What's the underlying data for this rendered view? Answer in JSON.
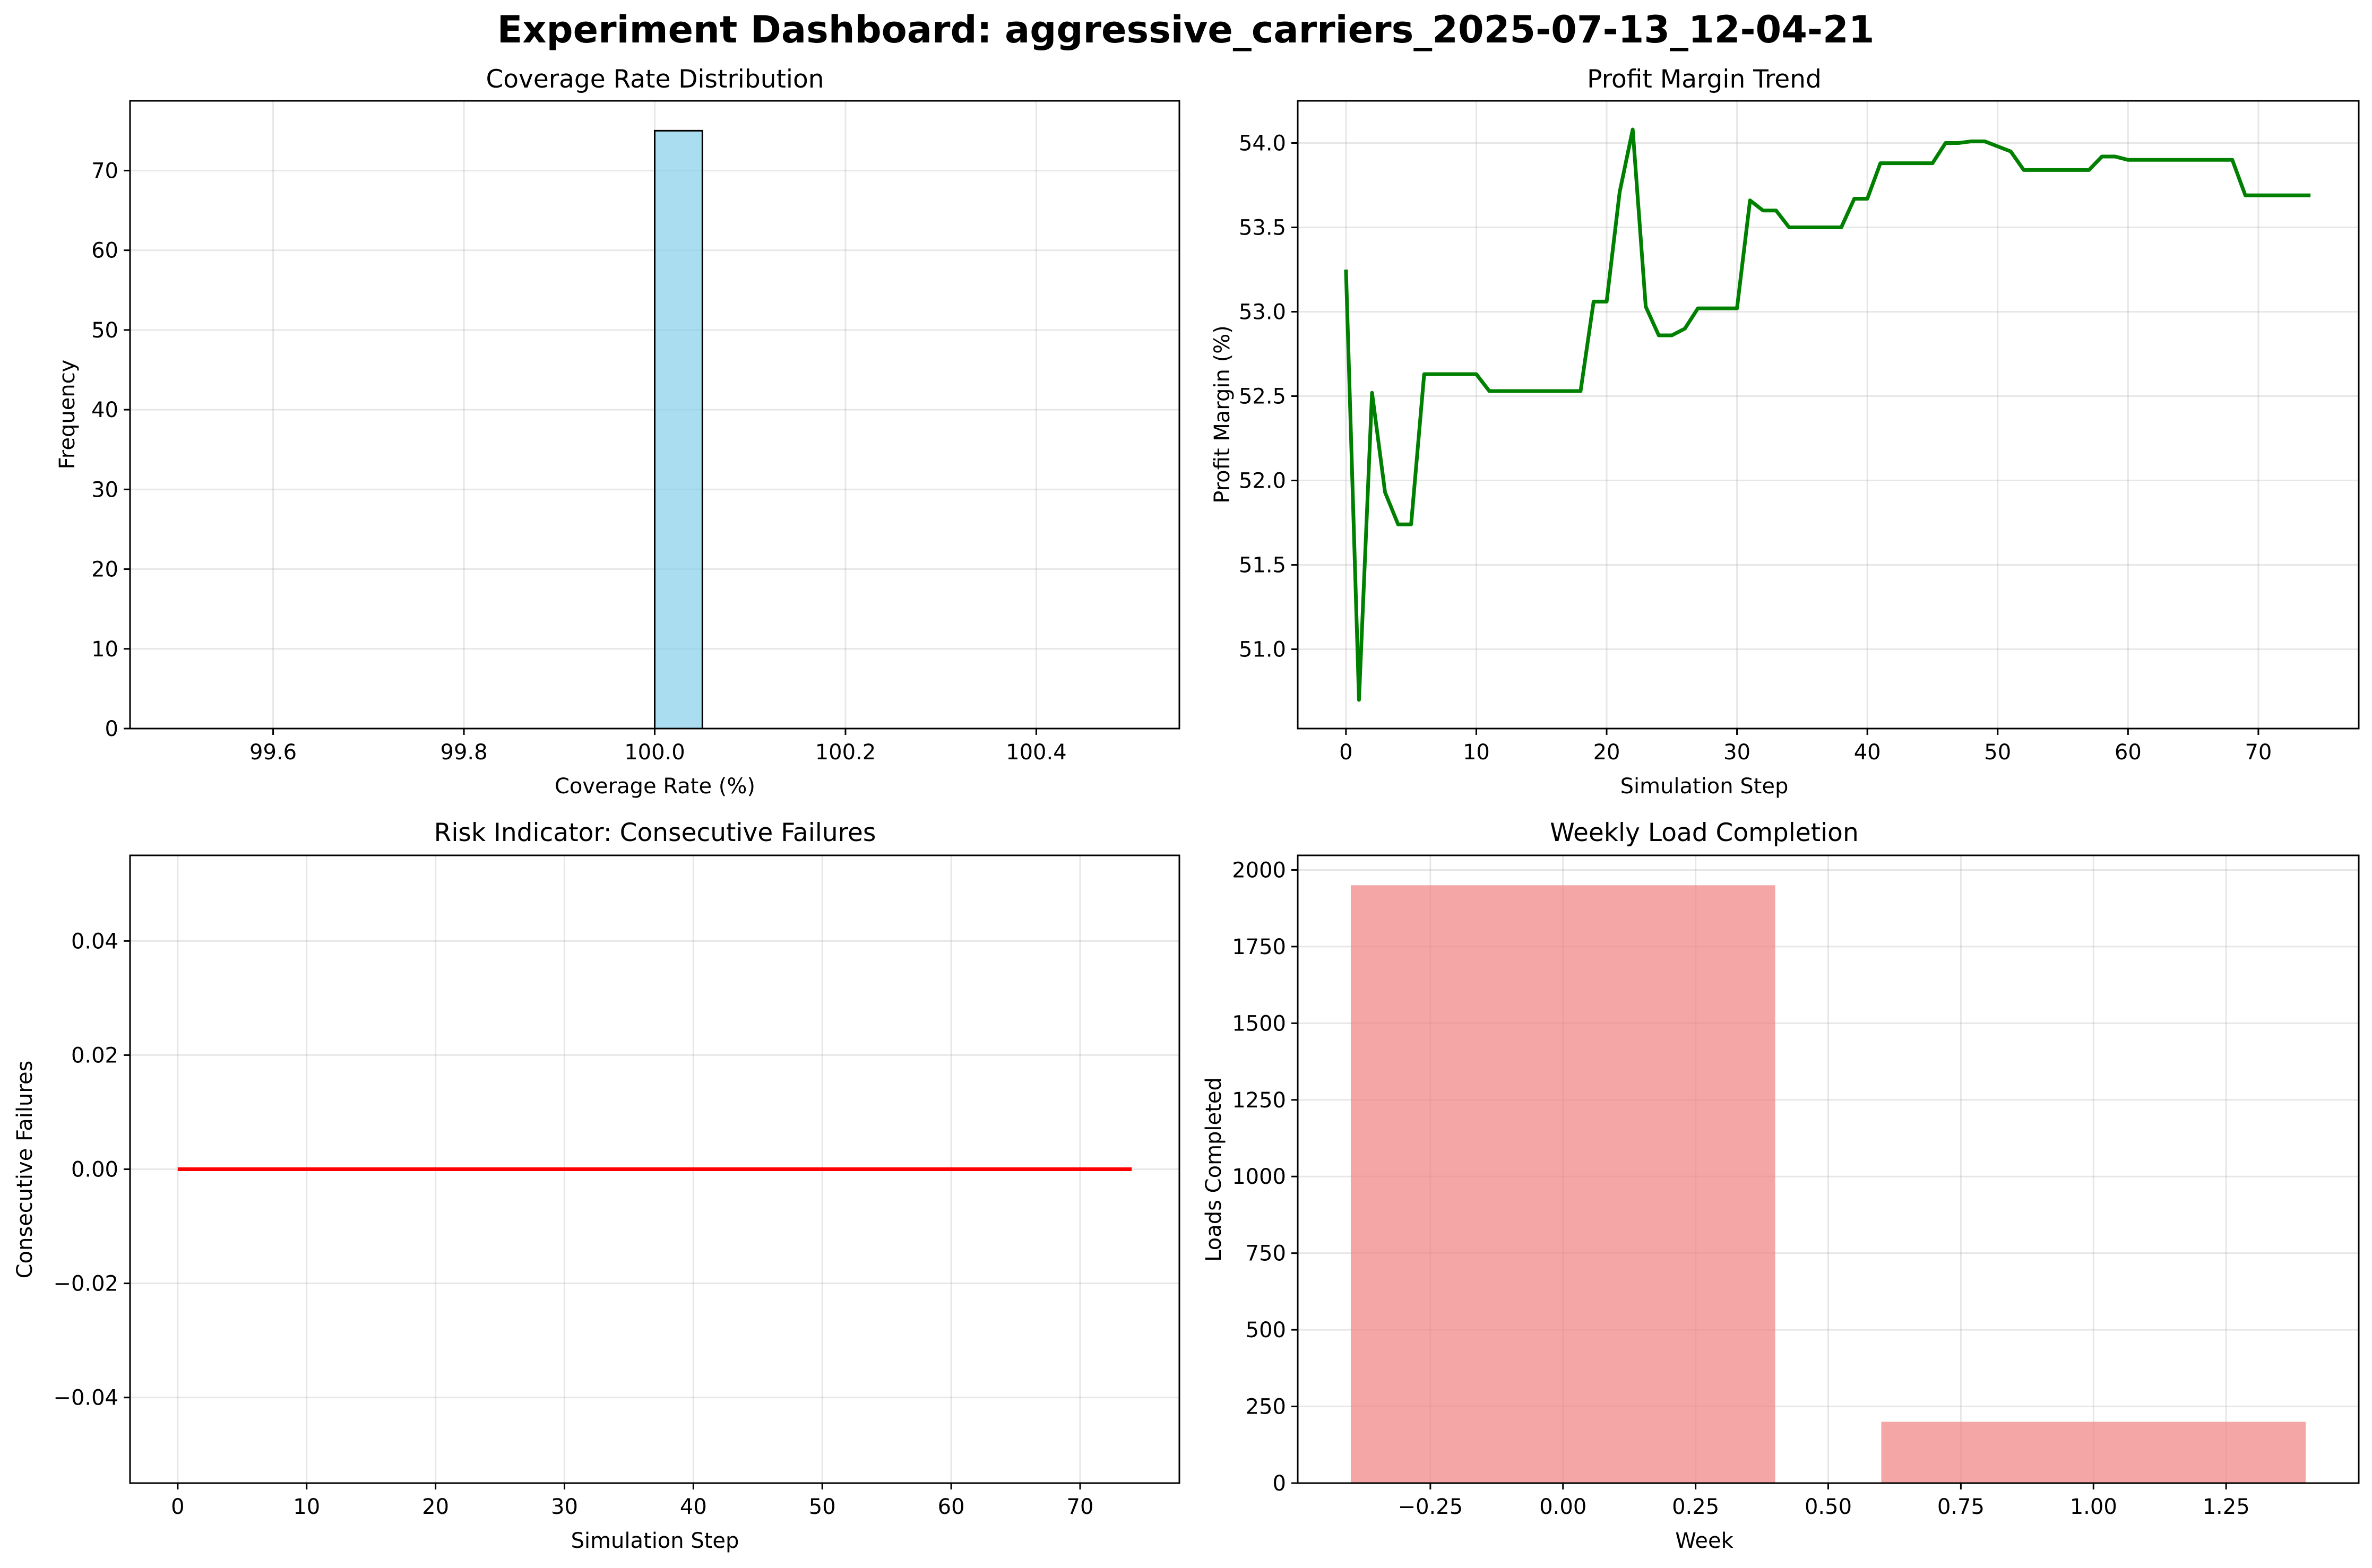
{
  "suptitle": "Experiment Dashboard: aggressive_carriers_2025-07-13_12-04-21",
  "chart_data": [
    {
      "type": "bar",
      "subtype": "histogram",
      "title": "Coverage Rate Distribution",
      "xlabel": "Coverage Rate (%)",
      "ylabel": "Frequency",
      "xlim": [
        99.45,
        100.55
      ],
      "ylim": [
        0,
        78.75
      ],
      "xticks": [
        99.6,
        99.8,
        100.0,
        100.2,
        100.4
      ],
      "xtick_labels": [
        "99.6",
        "99.8",
        "100.0",
        "100.2",
        "100.4"
      ],
      "yticks": [
        0,
        10,
        20,
        30,
        40,
        50,
        60,
        70
      ],
      "ytick_labels": [
        "0",
        "10",
        "20",
        "30",
        "40",
        "50",
        "60",
        "70"
      ],
      "bin_range": [
        99.5,
        100.5
      ],
      "bins": 20,
      "bin_edges_nonzero": [
        [
          100.0,
          100.05
        ]
      ],
      "values": [
        75
      ],
      "bar_color": "#87ceeb",
      "edge_color": "#000000",
      "grid": true
    },
    {
      "type": "line",
      "title": "Profit Margin Trend",
      "xlabel": "Simulation Step",
      "ylabel": "Profit Margin (%)",
      "xlim": [
        -3.7,
        77.7
      ],
      "ylim": [
        50.53,
        54.25
      ],
      "xticks": [
        0,
        10,
        20,
        30,
        40,
        50,
        60,
        70
      ],
      "xtick_labels": [
        "0",
        "10",
        "20",
        "30",
        "40",
        "50",
        "60",
        "70"
      ],
      "yticks": [
        51.0,
        51.5,
        52.0,
        52.5,
        53.0,
        53.5,
        54.0
      ],
      "ytick_labels": [
        "51.0",
        "51.5",
        "52.0",
        "52.5",
        "53.0",
        "53.5",
        "54.0"
      ],
      "line_color": "#008000",
      "grid": true,
      "x": [
        0,
        1,
        2,
        3,
        4,
        5,
        6,
        7,
        8,
        9,
        10,
        11,
        12,
        13,
        14,
        15,
        16,
        17,
        18,
        19,
        20,
        21,
        22,
        23,
        24,
        25,
        26,
        27,
        28,
        29,
        30,
        31,
        32,
        33,
        34,
        35,
        36,
        37,
        38,
        39,
        40,
        41,
        42,
        43,
        44,
        45,
        46,
        47,
        48,
        49,
        50,
        51,
        52,
        53,
        54,
        55,
        56,
        57,
        58,
        59,
        60,
        61,
        62,
        63,
        64,
        65,
        66,
        67,
        68,
        69,
        70,
        71,
        72,
        73,
        74
      ],
      "y": [
        53.25,
        50.7,
        52.52,
        51.93,
        51.74,
        51.74,
        52.63,
        52.63,
        52.63,
        52.63,
        52.63,
        52.53,
        52.53,
        52.53,
        52.53,
        52.53,
        52.53,
        52.53,
        52.53,
        53.06,
        53.06,
        53.71,
        54.08,
        53.03,
        52.86,
        52.86,
        52.9,
        53.02,
        53.02,
        53.02,
        53.02,
        53.66,
        53.6,
        53.6,
        53.5,
        53.5,
        53.5,
        53.5,
        53.5,
        53.67,
        53.67,
        53.88,
        53.88,
        53.88,
        53.88,
        53.88,
        54.0,
        54.0,
        54.01,
        54.01,
        53.98,
        53.95,
        53.84,
        53.84,
        53.84,
        53.84,
        53.84,
        53.84,
        53.92,
        53.92,
        53.9,
        53.9,
        53.9,
        53.9,
        53.9,
        53.9,
        53.9,
        53.9,
        53.9,
        53.69,
        53.69,
        53.69,
        53.69,
        53.69,
        53.69
      ]
    },
    {
      "type": "line",
      "title": "Risk Indicator: Consecutive Failures",
      "xlabel": "Simulation Step",
      "ylabel": "Consecutive Failures",
      "xlim": [
        -3.7,
        77.7
      ],
      "ylim": [
        -0.055,
        0.055
      ],
      "xticks": [
        0,
        10,
        20,
        30,
        40,
        50,
        60,
        70
      ],
      "xtick_labels": [
        "0",
        "10",
        "20",
        "30",
        "40",
        "50",
        "60",
        "70"
      ],
      "yticks": [
        -0.04,
        -0.02,
        0.0,
        0.02,
        0.04
      ],
      "ytick_labels": [
        "−0.04",
        "−0.02",
        "0.00",
        "0.02",
        "0.04"
      ],
      "line_color": "#ff0000",
      "grid": true,
      "x": [
        0,
        74
      ],
      "y": [
        0,
        0
      ]
    },
    {
      "type": "bar",
      "title": "Weekly Load Completion",
      "xlabel": "Week",
      "ylabel": "Loads Completed",
      "xlim": [
        -0.5,
        1.5
      ],
      "ylim": [
        0,
        2047.5
      ],
      "xticks": [
        -0.25,
        0.0,
        0.25,
        0.5,
        0.75,
        1.0,
        1.25
      ],
      "xtick_labels": [
        "−0.25",
        "0.00",
        "0.25",
        "0.50",
        "0.75",
        "1.00",
        "1.25"
      ],
      "yticks": [
        0,
        250,
        500,
        750,
        1000,
        1250,
        1500,
        1750,
        2000
      ],
      "ytick_labels": [
        "0",
        "250",
        "500",
        "750",
        "1000",
        "1250",
        "1500",
        "1750",
        "2000"
      ],
      "x": [
        0,
        1
      ],
      "values": [
        1950,
        200
      ],
      "bar_width": 0.8,
      "bar_color": "#f08080",
      "grid": true
    }
  ]
}
